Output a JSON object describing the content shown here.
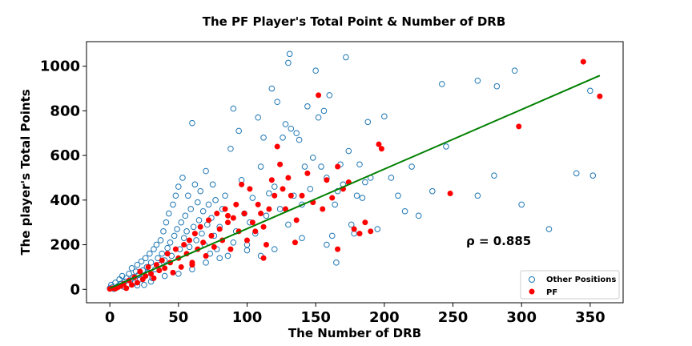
{
  "chart_data": {
    "type": "scatter",
    "title": "The PF Player's Total Point & Number of DRB",
    "xlabel": "The Number of DRB",
    "ylabel": "The player's Total Points",
    "xlim": [
      -17,
      374
    ],
    "ylim": [
      -60,
      1110
    ],
    "xticks": [
      0,
      50,
      100,
      150,
      200,
      250,
      300,
      350
    ],
    "yticks": [
      0,
      200,
      400,
      600,
      800,
      1000
    ],
    "grid": false,
    "legend_position": "bottom-right",
    "annotation": "ρ = 0.885",
    "colors": {
      "other": "#1f77b4",
      "pf": "#ff0000",
      "trend": "#008000"
    },
    "trend_line": {
      "x": [
        0,
        357
      ],
      "y": [
        5,
        958
      ]
    },
    "series": [
      {
        "name": "Other Positions",
        "marker": "hollow-circle",
        "points": [
          [
            0,
            5
          ],
          [
            1,
            20
          ],
          [
            2,
            10
          ],
          [
            3,
            2
          ],
          [
            4,
            30
          ],
          [
            5,
            8
          ],
          [
            6,
            15
          ],
          [
            7,
            45
          ],
          [
            8,
            25
          ],
          [
            9,
            60
          ],
          [
            10,
            12
          ],
          [
            11,
            35
          ],
          [
            12,
            50
          ],
          [
            13,
            22
          ],
          [
            14,
            70
          ],
          [
            15,
            40
          ],
          [
            16,
            95
          ],
          [
            17,
            55
          ],
          [
            18,
            30
          ],
          [
            19,
            80
          ],
          [
            20,
            110
          ],
          [
            21,
            65
          ],
          [
            22,
            45
          ],
          [
            23,
            125
          ],
          [
            24,
            85
          ],
          [
            25,
            60
          ],
          [
            26,
            140
          ],
          [
            27,
            100
          ],
          [
            28,
            75
          ],
          [
            29,
            160
          ],
          [
            30,
            120
          ],
          [
            31,
            50
          ],
          [
            32,
            180
          ],
          [
            33,
            90
          ],
          [
            34,
            200
          ],
          [
            35,
            140
          ],
          [
            36,
            110
          ],
          [
            37,
            220
          ],
          [
            38,
            160
          ],
          [
            39,
            260
          ],
          [
            40,
            130
          ],
          [
            41,
            300
          ],
          [
            42,
            185
          ],
          [
            43,
            340
          ],
          [
            44,
            210
          ],
          [
            45,
            150
          ],
          [
            46,
            380
          ],
          [
            47,
            240
          ],
          [
            48,
            420
          ],
          [
            49,
            270
          ],
          [
            50,
            460
          ],
          [
            51,
            180
          ],
          [
            52,
            300
          ],
          [
            53,
            500
          ],
          [
            54,
            230
          ],
          [
            55,
            330
          ],
          [
            56,
            260
          ],
          [
            57,
            420
          ],
          [
            58,
            190
          ],
          [
            59,
            360
          ],
          [
            60,
            745
          ],
          [
            61,
            280
          ],
          [
            62,
            470
          ],
          [
            63,
            220
          ],
          [
            64,
            390
          ],
          [
            65,
            310
          ],
          [
            66,
            440
          ],
          [
            67,
            250
          ],
          [
            68,
            350
          ],
          [
            69,
            200
          ],
          [
            70,
            530
          ],
          [
            71,
            290
          ],
          [
            72,
            380
          ],
          [
            73,
            160
          ],
          [
            74,
            320
          ],
          [
            75,
            470
          ],
          [
            76,
            240
          ],
          [
            77,
            400
          ],
          [
            78,
            180
          ],
          [
            80,
            280
          ],
          [
            82,
            360
          ],
          [
            84,
            420
          ],
          [
            86,
            150
          ],
          [
            88,
            630
          ],
          [
            90,
            810
          ],
          [
            92,
            260
          ],
          [
            94,
            710
          ],
          [
            96,
            490
          ],
          [
            98,
            340
          ],
          [
            100,
            200
          ],
          [
            102,
            300
          ],
          [
            104,
            410
          ],
          [
            106,
            250
          ],
          [
            108,
            770
          ],
          [
            110,
            550
          ],
          [
            112,
            680
          ],
          [
            114,
            330
          ],
          [
            116,
            430
          ],
          [
            118,
            900
          ],
          [
            120,
            460
          ],
          [
            122,
            840
          ],
          [
            124,
            360
          ],
          [
            126,
            680
          ],
          [
            128,
            740
          ],
          [
            130,
            1015
          ],
          [
            131,
            1055
          ],
          [
            132,
            720
          ],
          [
            134,
            420
          ],
          [
            136,
            700
          ],
          [
            138,
            670
          ],
          [
            140,
            380
          ],
          [
            142,
            550
          ],
          [
            144,
            820
          ],
          [
            146,
            450
          ],
          [
            148,
            590
          ],
          [
            150,
            980
          ],
          [
            152,
            770
          ],
          [
            154,
            550
          ],
          [
            156,
            800
          ],
          [
            158,
            500
          ],
          [
            160,
            870
          ],
          [
            162,
            240
          ],
          [
            164,
            380
          ],
          [
            166,
            440
          ],
          [
            168,
            560
          ],
          [
            170,
            470
          ],
          [
            172,
            1040
          ],
          [
            174,
            620
          ],
          [
            176,
            290
          ],
          [
            178,
            250
          ],
          [
            180,
            420
          ],
          [
            182,
            560
          ],
          [
            184,
            410
          ],
          [
            186,
            480
          ],
          [
            188,
            750
          ],
          [
            190,
            500
          ],
          [
            195,
            270
          ],
          [
            200,
            775
          ],
          [
            205,
            500
          ],
          [
            210,
            420
          ],
          [
            215,
            350
          ],
          [
            220,
            550
          ],
          [
            225,
            330
          ],
          [
            235,
            440
          ],
          [
            242,
            920
          ],
          [
            268,
            935
          ],
          [
            282,
            910
          ],
          [
            295,
            980
          ],
          [
            300,
            380
          ],
          [
            320,
            270
          ],
          [
            340,
            520
          ],
          [
            350,
            890
          ],
          [
            352,
            510
          ],
          [
            280,
            510
          ],
          [
            268,
            420
          ],
          [
            245,
            640
          ],
          [
            165,
            120
          ],
          [
            158,
            200
          ],
          [
            140,
            230
          ],
          [
            130,
            290
          ],
          [
            120,
            180
          ],
          [
            110,
            150
          ],
          [
            100,
            175
          ],
          [
            90,
            210
          ],
          [
            80,
            140
          ],
          [
            70,
            120
          ],
          [
            60,
            90
          ],
          [
            50,
            70
          ],
          [
            40,
            60
          ],
          [
            30,
            35
          ],
          [
            25,
            20
          ],
          [
            20,
            18
          ]
        ]
      },
      {
        "name": "PF",
        "marker": "filled-circle",
        "points": [
          [
            0,
            2
          ],
          [
            2,
            5
          ],
          [
            4,
            3
          ],
          [
            6,
            10
          ],
          [
            8,
            15
          ],
          [
            10,
            25
          ],
          [
            12,
            5
          ],
          [
            14,
            40
          ],
          [
            16,
            20
          ],
          [
            18,
            55
          ],
          [
            20,
            30
          ],
          [
            22,
            80
          ],
          [
            24,
            45
          ],
          [
            26,
            60
          ],
          [
            28,
            100
          ],
          [
            30,
            70
          ],
          [
            32,
            50
          ],
          [
            34,
            110
          ],
          [
            36,
            85
          ],
          [
            38,
            130
          ],
          [
            40,
            95
          ],
          [
            42,
            160
          ],
          [
            44,
            120
          ],
          [
            46,
            75
          ],
          [
            48,
            180
          ],
          [
            50,
            140
          ],
          [
            52,
            100
          ],
          [
            54,
            200
          ],
          [
            56,
            160
          ],
          [
            58,
            220
          ],
          [
            60,
            120
          ],
          [
            62,
            250
          ],
          [
            64,
            180
          ],
          [
            66,
            280
          ],
          [
            68,
            210
          ],
          [
            70,
            150
          ],
          [
            72,
            310
          ],
          [
            74,
            240
          ],
          [
            76,
            190
          ],
          [
            78,
            340
          ],
          [
            80,
            270
          ],
          [
            82,
            220
          ],
          [
            84,
            360
          ],
          [
            86,
            300
          ],
          [
            88,
            180
          ],
          [
            90,
            320
          ],
          [
            92,
            380
          ],
          [
            94,
            260
          ],
          [
            96,
            470
          ],
          [
            98,
            340
          ],
          [
            100,
            220
          ],
          [
            102,
            450
          ],
          [
            104,
            300
          ],
          [
            106,
            260
          ],
          [
            108,
            380
          ],
          [
            110,
            340
          ],
          [
            112,
            280
          ],
          [
            114,
            200
          ],
          [
            116,
            360
          ],
          [
            118,
            490
          ],
          [
            120,
            420
          ],
          [
            122,
            640
          ],
          [
            124,
            560
          ],
          [
            126,
            450
          ],
          [
            128,
            360
          ],
          [
            130,
            500
          ],
          [
            132,
            420
          ],
          [
            136,
            310
          ],
          [
            140,
            420
          ],
          [
            144,
            520
          ],
          [
            148,
            390
          ],
          [
            152,
            870
          ],
          [
            155,
            360
          ],
          [
            158,
            490
          ],
          [
            162,
            410
          ],
          [
            166,
            550
          ],
          [
            170,
            450
          ],
          [
            174,
            480
          ],
          [
            178,
            270
          ],
          [
            182,
            250
          ],
          [
            186,
            300
          ],
          [
            190,
            260
          ],
          [
            196,
            650
          ],
          [
            198,
            630
          ],
          [
            248,
            430
          ],
          [
            298,
            730
          ],
          [
            345,
            1020
          ],
          [
            357,
            865
          ],
          [
            166,
            180
          ],
          [
            135,
            210
          ],
          [
            112,
            140
          ],
          [
            86,
            330
          ],
          [
            60,
            110
          ]
        ]
      }
    ]
  }
}
